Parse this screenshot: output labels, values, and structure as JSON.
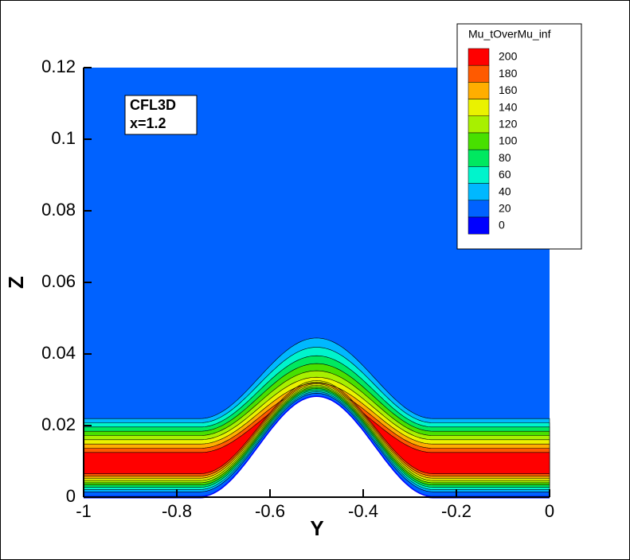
{
  "chart_data": {
    "type": "contour",
    "x_label": "Y",
    "y_label": "Z",
    "annotation": [
      "CFL3D",
      "x=1.2"
    ],
    "xlim": [
      -1,
      0
    ],
    "xticks": [
      -1,
      -0.8,
      -0.6,
      -0.4,
      -0.2,
      0
    ],
    "ylim": [
      0,
      0.12
    ],
    "yticks": [
      0,
      0.02,
      0.04,
      0.06,
      0.08,
      0.1,
      0.12
    ],
    "legend": {
      "title": "Mu_tOverMu_inf",
      "levels": [
        200,
        180,
        160,
        140,
        120,
        100,
        80,
        60,
        40,
        20,
        0
      ],
      "colors": [
        "#ff0000",
        "#ff5a00",
        "#ffae00",
        "#eaf200",
        "#a8f000",
        "#48e000",
        "#00e860",
        "#00f4cc",
        "#00b8ff",
        "#0062ff",
        "#0000ff"
      ],
      "position": "upper right"
    }
  }
}
